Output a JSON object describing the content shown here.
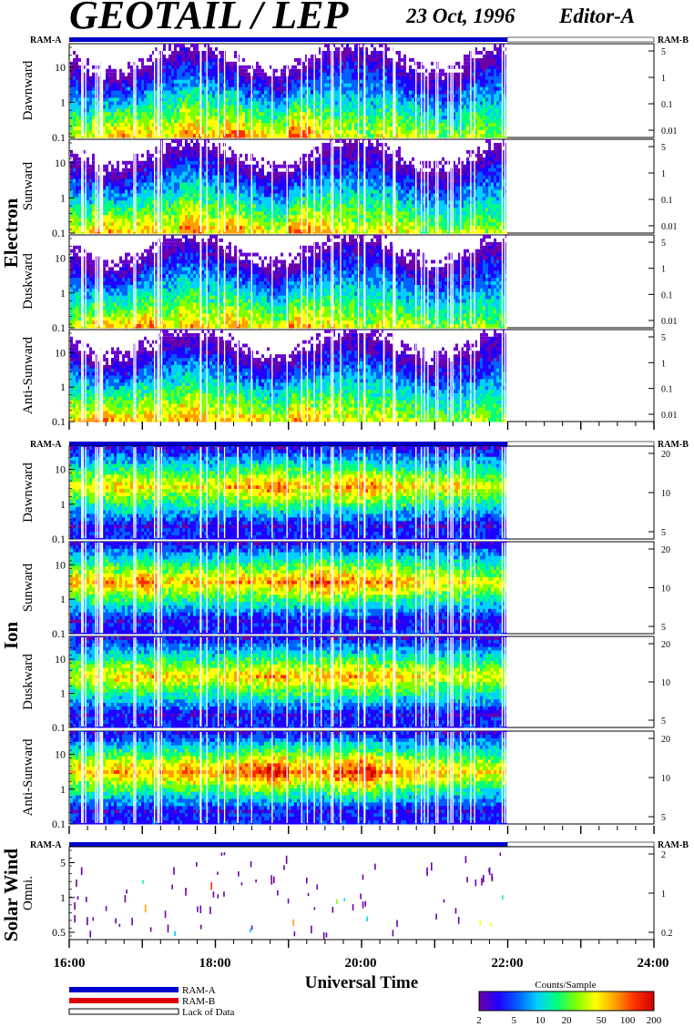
{
  "title": "GEOTAIL / LEP",
  "date": "23 Oct, 1996",
  "editor": "Editor-A",
  "ram_a": "RAM-A",
  "ram_b": "RAM-B",
  "sections": [
    {
      "name": "Electron",
      "panels": [
        "Dawnward",
        "Sunward",
        "Duskward",
        "Anti-Sunward"
      ],
      "left_ticks": [
        "10",
        "1",
        "0.1"
      ],
      "right_ticks": [
        "5",
        "1",
        "0.1",
        "0.01"
      ]
    },
    {
      "name": "Ion",
      "panels": [
        "Dawnward",
        "Sunward",
        "Duskward",
        "Anti-Sunward"
      ],
      "left_ticks": [
        "10",
        "1",
        "0.1"
      ],
      "right_ticks": [
        "20",
        "10",
        "5"
      ]
    },
    {
      "name": "Solar Wind",
      "panels": [
        "Omni."
      ],
      "left_ticks": [
        "5",
        "1",
        "0.5"
      ],
      "right_ticks": [
        "2",
        "1",
        "0.2"
      ]
    }
  ],
  "xaxis": {
    "title": "Universal Time",
    "ticks": [
      "16:00",
      "18:00",
      "20:00",
      "22:00",
      "24:00"
    ]
  },
  "legend": {
    "items": [
      {
        "label": "RAM-A",
        "color": "#0000cc"
      },
      {
        "label": "RAM-B",
        "color": "#dd0000"
      },
      {
        "label": "Lack of Data",
        "color": "#ffffff"
      }
    ]
  },
  "colorbar": {
    "title": "Counts/Sample",
    "ticks": [
      "2",
      "5",
      "10",
      "20",
      "50",
      "100",
      "200"
    ],
    "colors": [
      "#6a00a8",
      "#2000ff",
      "#0060ff",
      "#00d0ff",
      "#00ff80",
      "#80ff00",
      "#ffff00",
      "#ffa000",
      "#ff3000",
      "#d00000"
    ]
  },
  "chart_data": {
    "type": "heatmap",
    "title": "GEOTAIL / LEP",
    "subtitle": "23 Oct, 1996",
    "xlabel": "Universal Time",
    "xlim": [
      "16:00",
      "24:00"
    ],
    "data_end": "22:00",
    "colorbar_label": "Counts/Sample",
    "colorbar_range": [
      2,
      200
    ],
    "panels": [
      {
        "section": "Electron",
        "name": "Dawnward",
        "ylim": [
          0.1,
          30
        ],
        "mean_log_counts": [
          1.4,
          1.6,
          1.8,
          1.7,
          1.5,
          1.8,
          1.6,
          1.9,
          1.7,
          1.5,
          2.0,
          1.6,
          1.4,
          1.3,
          1.5,
          1.4,
          1.3,
          1.2,
          1.4,
          1.2
        ]
      },
      {
        "section": "Electron",
        "name": "Sunward",
        "ylim": [
          0.1,
          30
        ],
        "mean_log_counts": [
          1.5,
          1.8,
          1.6,
          1.7,
          1.5,
          1.9,
          1.6,
          1.8,
          1.6,
          1.4,
          1.9,
          1.7,
          1.5,
          1.4,
          1.6,
          1.5,
          1.3,
          1.2,
          1.4,
          1.3
        ]
      },
      {
        "section": "Electron",
        "name": "Duskward",
        "ylim": [
          0.1,
          30
        ],
        "mean_log_counts": [
          1.4,
          1.7,
          1.6,
          1.8,
          1.5,
          1.7,
          1.5,
          1.8,
          1.6,
          1.4,
          1.8,
          1.6,
          1.5,
          1.3,
          1.5,
          1.4,
          1.3,
          1.2,
          1.3,
          1.2
        ]
      },
      {
        "section": "Electron",
        "name": "Anti-Sunward",
        "ylim": [
          0.1,
          30
        ],
        "mean_log_counts": [
          1.6,
          1.8,
          1.7,
          1.7,
          1.6,
          1.8,
          1.6,
          1.7,
          1.6,
          1.4,
          1.8,
          1.6,
          1.5,
          1.4,
          1.5,
          1.4,
          1.3,
          1.2,
          1.3,
          1.2
        ]
      },
      {
        "section": "Ion",
        "name": "Dawnward",
        "ylim": [
          0.1,
          30
        ],
        "mean_log_counts": [
          1.3,
          1.4,
          1.5,
          1.4,
          1.3,
          1.4,
          1.3,
          1.5,
          1.6,
          1.7,
          1.5,
          1.4,
          1.6,
          1.7,
          1.5,
          1.4,
          1.3,
          1.4,
          1.3,
          1.3
        ]
      },
      {
        "section": "Ion",
        "name": "Sunward",
        "ylim": [
          0.1,
          30
        ],
        "mean_log_counts": [
          1.5,
          1.6,
          1.5,
          1.7,
          1.4,
          1.5,
          1.4,
          1.6,
          1.5,
          1.6,
          1.6,
          1.8,
          1.7,
          1.6,
          1.7,
          1.5,
          1.4,
          1.4,
          1.3,
          1.3
        ]
      },
      {
        "section": "Ion",
        "name": "Duskward",
        "ylim": [
          0.1,
          30
        ],
        "mean_log_counts": [
          1.3,
          1.4,
          1.4,
          1.5,
          1.4,
          1.4,
          1.3,
          1.5,
          1.5,
          1.6,
          1.5,
          1.5,
          1.6,
          1.6,
          1.5,
          1.4,
          1.4,
          1.3,
          1.3,
          1.3
        ]
      },
      {
        "section": "Ion",
        "name": "Anti-Sunward",
        "ylim": [
          0.1,
          30
        ],
        "mean_log_counts": [
          1.5,
          1.5,
          1.6,
          1.5,
          1.6,
          1.7,
          1.5,
          1.7,
          1.8,
          2.0,
          1.7,
          1.6,
          1.9,
          2.0,
          1.7,
          1.6,
          1.5,
          1.5,
          1.4,
          1.4
        ]
      },
      {
        "section": "Solar Wind",
        "name": "Omni.",
        "ylim": [
          0.2,
          8
        ],
        "mean_log_counts": [
          0.5,
          0.4,
          0.6,
          0.5,
          0.4,
          0.5,
          0.4,
          0.5,
          0.6,
          0.8,
          0.5,
          0.4,
          0.5,
          0.6,
          0.5,
          0.4,
          0.3,
          0.3,
          0.3,
          0.3
        ]
      }
    ]
  }
}
